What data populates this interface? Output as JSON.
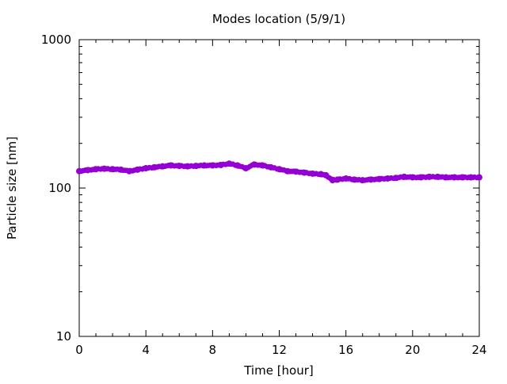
{
  "chart_data": {
    "type": "scatter",
    "title": "Modes location (5/9/1)",
    "xlabel": "Time [hour]",
    "ylabel": "Particle size [nm]",
    "xlim": [
      0,
      24
    ],
    "ylim": [
      10,
      1000
    ],
    "yscale": "log",
    "grid": false,
    "legend": "none",
    "series_color": "#9400d3",
    "x_ticks": [
      0,
      4,
      8,
      12,
      16,
      20,
      24
    ],
    "x_tick_labels": [
      "0",
      "4",
      "8",
      "12",
      "16",
      "20",
      "24"
    ],
    "y_ticks": [
      10,
      100,
      1000
    ],
    "y_tick_labels": [
      "10",
      "100",
      "1000"
    ],
    "series": [
      {
        "x": [
          0,
          0.5,
          1,
          1.5,
          2,
          2.5,
          3,
          3.5,
          4,
          4.5,
          5,
          5.5,
          6,
          6.5,
          7,
          7.5,
          8,
          8.5,
          9,
          9.5,
          10,
          10.5,
          11,
          11.5,
          12,
          12.5,
          13,
          13.5,
          14,
          14.5,
          14.8,
          15.2,
          15.5,
          16,
          16.5,
          17,
          17.5,
          18,
          18.5,
          19,
          19.5,
          20,
          20.5,
          21,
          21.5,
          22,
          22.5,
          23,
          23.5,
          24
        ],
        "y": [
          130,
          132,
          134,
          135,
          134,
          133,
          130,
          133,
          136,
          138,
          140,
          142,
          141,
          140,
          141,
          142,
          142,
          143,
          146,
          142,
          136,
          144,
          142,
          138,
          134,
          130,
          129,
          127,
          125,
          124,
          122,
          113,
          114,
          116,
          114,
          113,
          114,
          115,
          116,
          117,
          119,
          118,
          118,
          119,
          119,
          118,
          118,
          118,
          118,
          118
        ]
      }
    ]
  }
}
